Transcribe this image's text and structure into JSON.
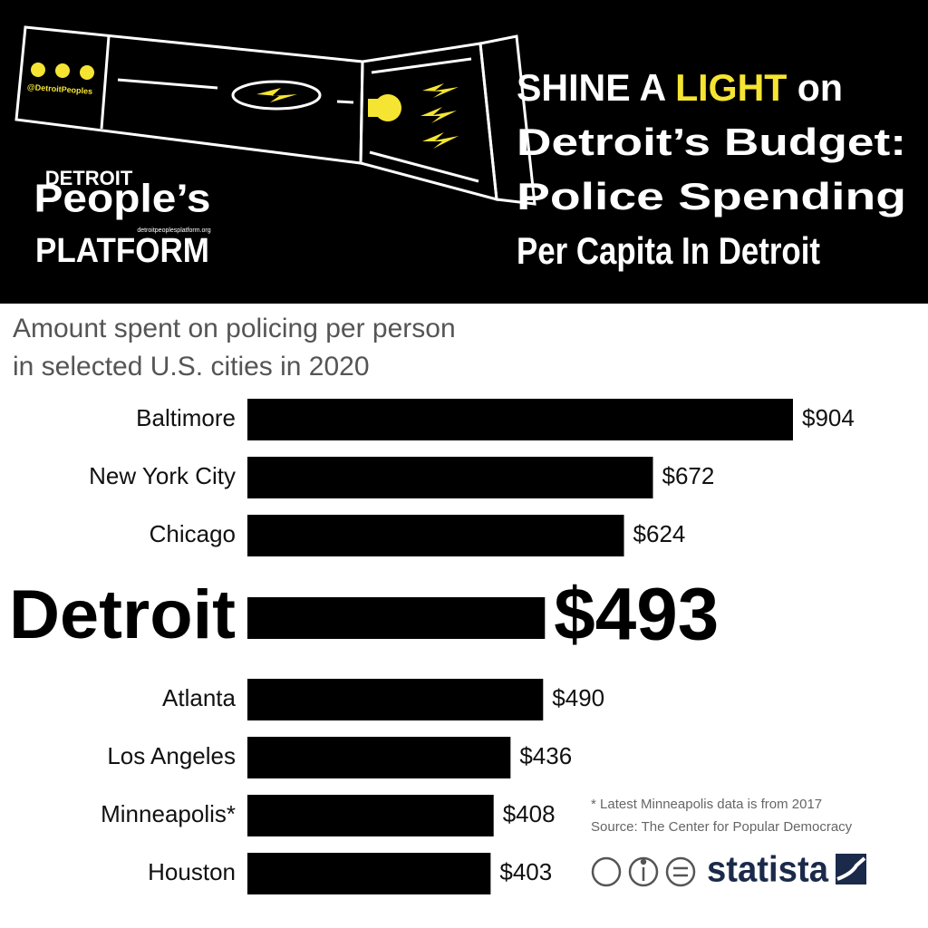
{
  "header": {
    "title_line1": [
      "SHINE A",
      "LIGHT",
      "on"
    ],
    "title_lines": [
      "Detroit’s Budget:",
      "Police Spending",
      "Per Capita In Detroit"
    ],
    "handle": "@DetroitPeoples",
    "logo": [
      "DETROIT",
      "People’s",
      "PLATFORM"
    ],
    "logo_url": "detroitpeoplesplatform.org"
  },
  "chart_data": {
    "type": "bar",
    "orientation": "horizontal",
    "subtitle": [
      "Amount spent on policing per person",
      "in selected U.S. cities in 2020"
    ],
    "categories": [
      "Baltimore",
      "New York City",
      "Chicago",
      "Detroit",
      "Atlanta",
      "Los Angeles",
      "Minneapolis*",
      "Houston"
    ],
    "values": [
      904,
      672,
      624,
      493,
      490,
      436,
      408,
      403
    ],
    "value_labels": [
      "$904",
      "$672",
      "$624",
      "$493",
      "$490",
      "$436",
      "$408",
      "$403"
    ],
    "color": "#000000",
    "highlight": 3,
    "xlim": [
      0,
      904
    ],
    "footnote": "* Latest Minneapolis data is from 2017",
    "source": "Source: The Center for Popular Democracy",
    "brand": "statista"
  }
}
